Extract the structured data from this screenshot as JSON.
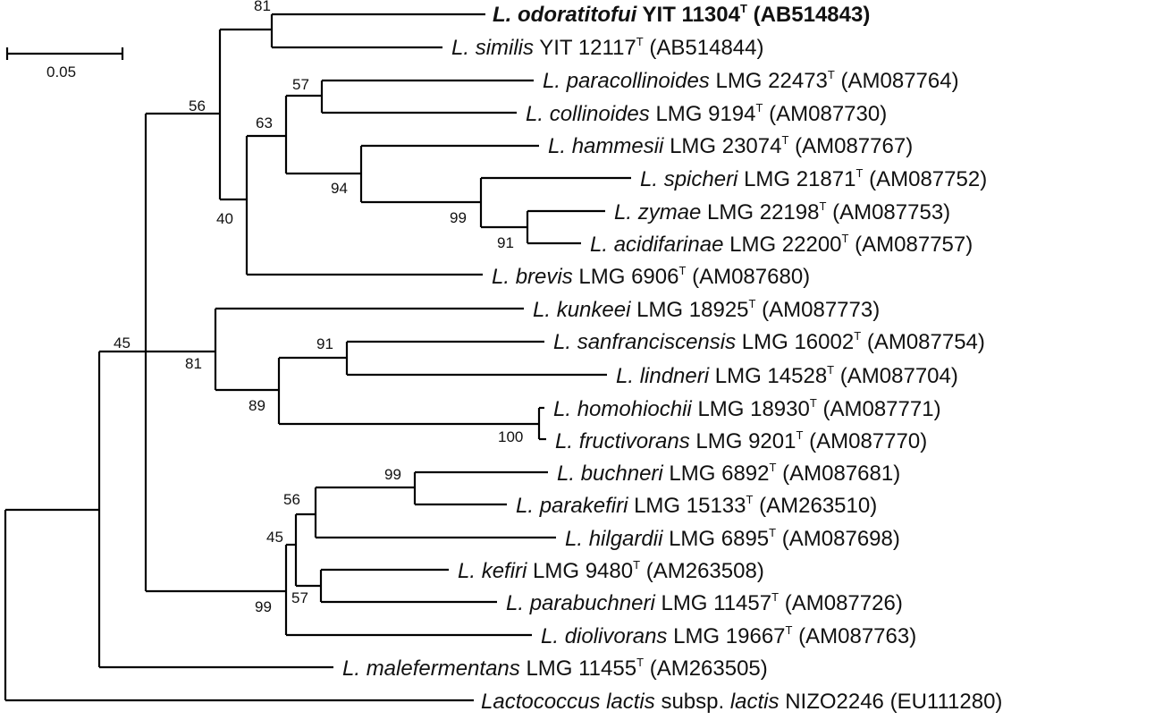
{
  "scale_bar": {
    "label": "0.05"
  },
  "leaves": [
    {
      "id": "odoratitofui",
      "genus": "L.",
      "species": "odoratitofui",
      "strain": "YIT 11304",
      "sup": "T",
      "accession": "(AB514843)",
      "bold": true
    },
    {
      "id": "similis",
      "genus": "L.",
      "species": "similis",
      "strain": "YIT 12117",
      "sup": "T",
      "accession": "(AB514844)"
    },
    {
      "id": "paracollinoides",
      "genus": "L.",
      "species": "paracollinoides",
      "strain": "LMG 22473",
      "sup": "T",
      "accession": "(AM087764)"
    },
    {
      "id": "collinoides",
      "genus": "L.",
      "species": "collinoides",
      "strain": "LMG 9194",
      "sup": "T",
      "accession": "(AM087730)"
    },
    {
      "id": "hammesii",
      "genus": "L.",
      "species": "hammesii",
      "strain": "LMG 23074",
      "sup": "T",
      "accession": "(AM087767)"
    },
    {
      "id": "spicheri",
      "genus": "L.",
      "species": "spicheri",
      "strain": "LMG 21871",
      "sup": "T",
      "accession": "(AM087752)"
    },
    {
      "id": "zymae",
      "genus": "L.",
      "species": "zymae",
      "strain": "LMG 22198",
      "sup": "T",
      "accession": "(AM087753)"
    },
    {
      "id": "acidifarinae",
      "genus": "L.",
      "species": "acidifarinae",
      "strain": "LMG 22200",
      "sup": "T",
      "accession": "(AM087757)"
    },
    {
      "id": "brevis",
      "genus": "L.",
      "species": "brevis",
      "strain": "LMG 6906",
      "sup": "T",
      "accession": "(AM087680)"
    },
    {
      "id": "kunkeei",
      "genus": "L.",
      "species": "kunkeei",
      "strain": "LMG 18925",
      "sup": "T",
      "accession": "(AM087773)"
    },
    {
      "id": "sanfranciscensis",
      "genus": "L.",
      "species": "sanfranciscensis",
      "strain": "LMG 16002",
      "sup": "T",
      "accession": "(AM087754)"
    },
    {
      "id": "lindneri",
      "genus": "L.",
      "species": "lindneri",
      "strain": "LMG 14528",
      "sup": "T",
      "accession": "(AM087704)"
    },
    {
      "id": "homohiochii",
      "genus": "L.",
      "species": "homohiochii",
      "strain": "LMG 18930",
      "sup": "T",
      "accession": "(AM087771)"
    },
    {
      "id": "fructivorans",
      "genus": "L.",
      "species": "fructivorans",
      "strain": "LMG 9201",
      "sup": "T",
      "accession": "(AM087770)"
    },
    {
      "id": "buchneri",
      "genus": "L.",
      "species": "buchneri",
      "strain": "LMG 6892",
      "sup": "T",
      "accession": "(AM087681)"
    },
    {
      "id": "parakefiri",
      "genus": "L.",
      "species": "parakefiri",
      "strain": "LMG 15133",
      "sup": "T",
      "accession": "(AM263510)"
    },
    {
      "id": "hilgardii",
      "genus": "L.",
      "species": "hilgardii",
      "strain": "LMG 6895",
      "sup": "T",
      "accession": "(AM087698)"
    },
    {
      "id": "kefiri",
      "genus": "L.",
      "species": "kefiri",
      "strain": "LMG 9480",
      "sup": "T",
      "accession": "(AM263508)"
    },
    {
      "id": "parabuchneri",
      "genus": "L.",
      "species": "parabuchneri",
      "strain": "LMG 11457",
      "sup": "T",
      "accession": "(AM087726)"
    },
    {
      "id": "diolivorans",
      "genus": "L.",
      "species": "diolivorans",
      "strain": "LMG 19667",
      "sup": "T",
      "accession": "(AM087763)"
    },
    {
      "id": "malefermentans",
      "genus": "L.",
      "species": "malefermentans",
      "strain": "LMG 11455",
      "sup": "T",
      "accession": "(AM263505)"
    },
    {
      "id": "lactococcus",
      "genus": "Lactococcus",
      "species": "lactis",
      "mid": "subsp.",
      "species2": "lactis",
      "strain": "NIZO2246",
      "sup": "",
      "accession": "(EU111280)"
    }
  ],
  "bootstrap_values": [
    "81",
    "56",
    "57",
    "63",
    "94",
    "99",
    "91",
    "40",
    "45",
    "91",
    "81",
    "89",
    "100",
    "99",
    "56",
    "45",
    "57",
    "99"
  ]
}
